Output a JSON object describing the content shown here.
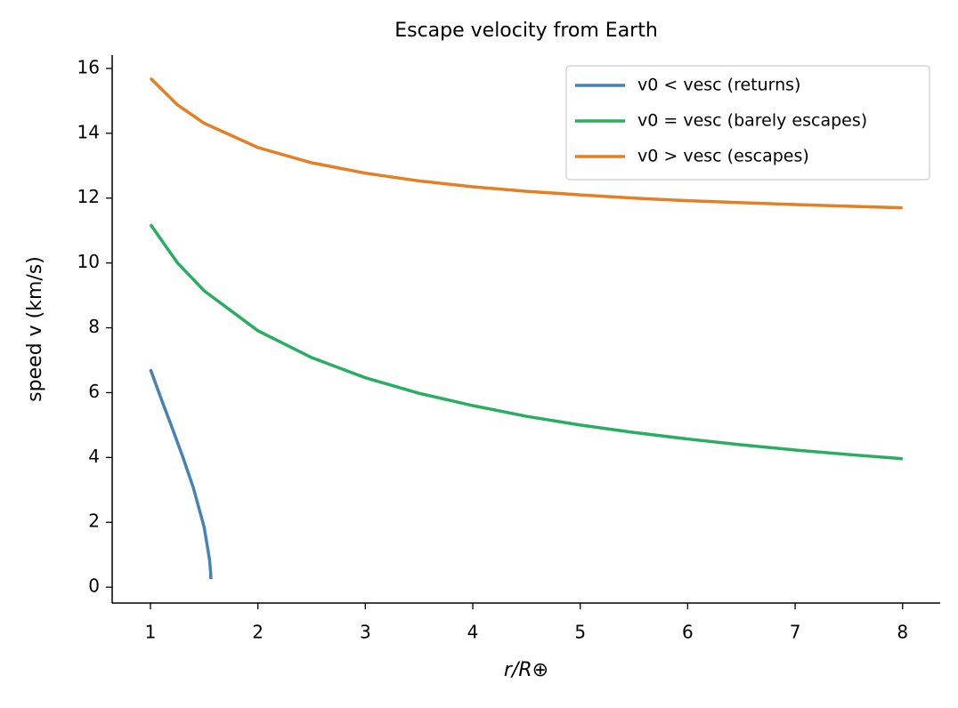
{
  "chart_data": {
    "type": "line",
    "title": "Escape velocity from Earth",
    "x_label": "r/R⊕",
    "y_label": "speed  v (km/s)",
    "xlim": [
      0.644,
      8.35
    ],
    "ylim": [
      -0.49,
      16.41
    ],
    "xticks": [
      1,
      2,
      3,
      4,
      5,
      6,
      7,
      8
    ],
    "yticks": [
      0,
      2,
      4,
      6,
      8,
      10,
      12,
      14,
      16
    ],
    "legend": "upper right",
    "series": [
      {
        "name": "v0 < vesc (returns)",
        "color": "#4682b4",
        "x": [
          1,
          1.1,
          1.2,
          1.3,
          1.4,
          1.5,
          1.55,
          1.56,
          1.563
        ],
        "values": [
          6.72,
          5.81,
          4.93,
          4.03,
          3.06,
          1.85,
          0.85,
          0.47,
          0.25
        ]
      },
      {
        "name": "v0 = vesc (barely escapes)",
        "color": "#27ae60",
        "x": [
          1,
          1.25,
          1.5,
          2,
          2.5,
          3,
          3.5,
          4,
          4.5,
          5,
          5.5,
          6,
          6.5,
          7,
          7.5,
          8
        ],
        "values": [
          11.19,
          10.01,
          9.14,
          7.91,
          7.08,
          6.46,
          5.98,
          5.6,
          5.27,
          5.0,
          4.77,
          4.57,
          4.39,
          4.23,
          4.09,
          3.96
        ]
      },
      {
        "name": "v0 > vesc (escapes)",
        "color": "#e67e22",
        "x": [
          1,
          1.25,
          1.5,
          2,
          2.5,
          3,
          3.5,
          4,
          4.5,
          5,
          5.5,
          6,
          6.5,
          7,
          7.5,
          8
        ],
        "values": [
          15.7,
          14.88,
          14.31,
          13.56,
          13.09,
          12.77,
          12.53,
          12.35,
          12.21,
          12.1,
          12.0,
          11.92,
          11.86,
          11.8,
          11.75,
          11.7
        ]
      }
    ]
  }
}
